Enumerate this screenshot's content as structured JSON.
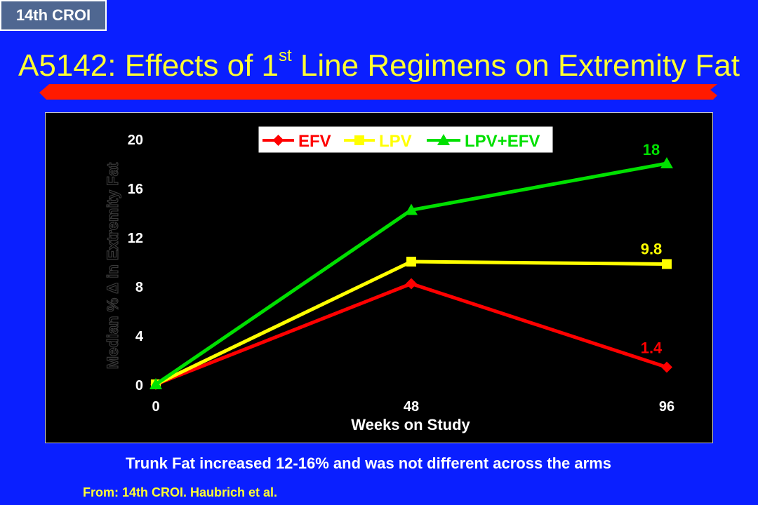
{
  "badge": "14th CROI",
  "title": {
    "prefix": "A5142: Effects of 1",
    "superscript": "st",
    "suffix": " Line Regimens on Extremity Fat"
  },
  "caption": "Trunk Fat increased 12-16% and was not different across the arms",
  "source": "From: 14th CROI. Haubrich et al.",
  "colors": {
    "background": "#0a1fff",
    "title": "#ffff33",
    "title_bar": "#ff1a00",
    "efv": "#ff0000",
    "lpv": "#ffff00",
    "lpv_efv": "#00e000"
  },
  "chart_data": {
    "type": "line",
    "xlabel": "Weeks on Study",
    "ylabel": "Median % Δ in Extremity Fat",
    "x": [
      0,
      48,
      96
    ],
    "xlim": [
      0,
      96
    ],
    "ylim": [
      0,
      20
    ],
    "yticks": [
      0,
      4,
      8,
      12,
      16,
      20
    ],
    "xticks": [
      0,
      48,
      96
    ],
    "grid": false,
    "legend_position": "top",
    "series": [
      {
        "name": "EFV",
        "values": [
          0,
          8.2,
          1.4
        ],
        "color": "#ff0000",
        "marker": "diamond",
        "end_label": "1.4"
      },
      {
        "name": "LPV",
        "values": [
          0,
          10.0,
          9.8
        ],
        "color": "#ffff00",
        "marker": "square",
        "end_label": "9.8"
      },
      {
        "name": "LPV+EFV",
        "values": [
          0,
          14.2,
          18
        ],
        "color": "#00e000",
        "marker": "triangle",
        "end_label": "18"
      }
    ]
  }
}
